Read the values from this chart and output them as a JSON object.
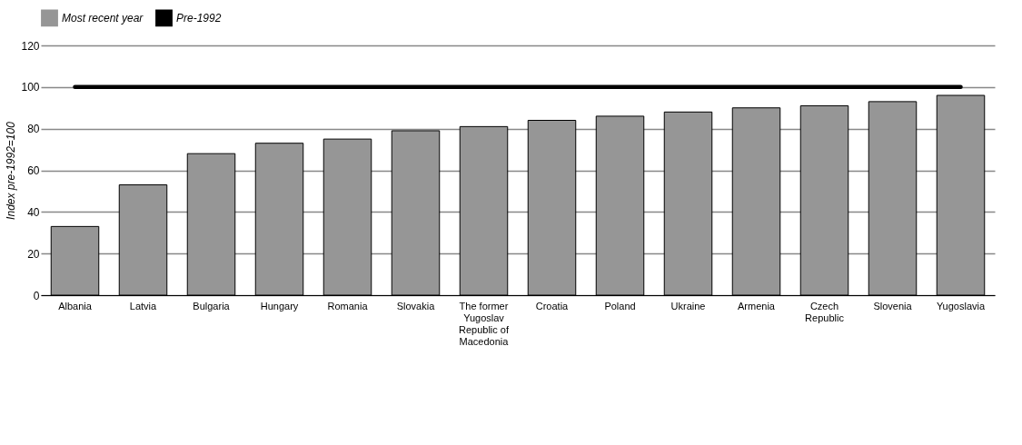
{
  "chart_data": {
    "type": "bar",
    "ylabel": "Index pre-1992=100",
    "categories": [
      "Albania",
      "Latvia",
      "Bulgaria",
      "Hungary",
      "Romania",
      "Slovakia",
      "The former Yugoslav Republic of Macedonia",
      "Croatia",
      "Poland",
      "Ukraine",
      "Armenia",
      "Czech Republic",
      "Slovenia",
      "Yugoslavia"
    ],
    "series": [
      {
        "name": "Most recent year",
        "color": "#969696",
        "values": [
          33,
          53,
          68,
          73,
          75,
          79,
          81,
          84,
          86,
          88,
          90,
          91,
          93,
          96
        ]
      },
      {
        "name": "Pre-1992",
        "type": "line",
        "color": "#000000",
        "values": [
          100,
          100,
          100,
          100,
          100,
          100,
          100,
          100,
          100,
          100,
          100,
          100,
          100,
          100
        ]
      }
    ],
    "ylim": [
      0,
      120
    ],
    "yticks": [
      0,
      20,
      40,
      60,
      80,
      100,
      120
    ],
    "grid": "y",
    "legend": "top",
    "marker": "none"
  }
}
